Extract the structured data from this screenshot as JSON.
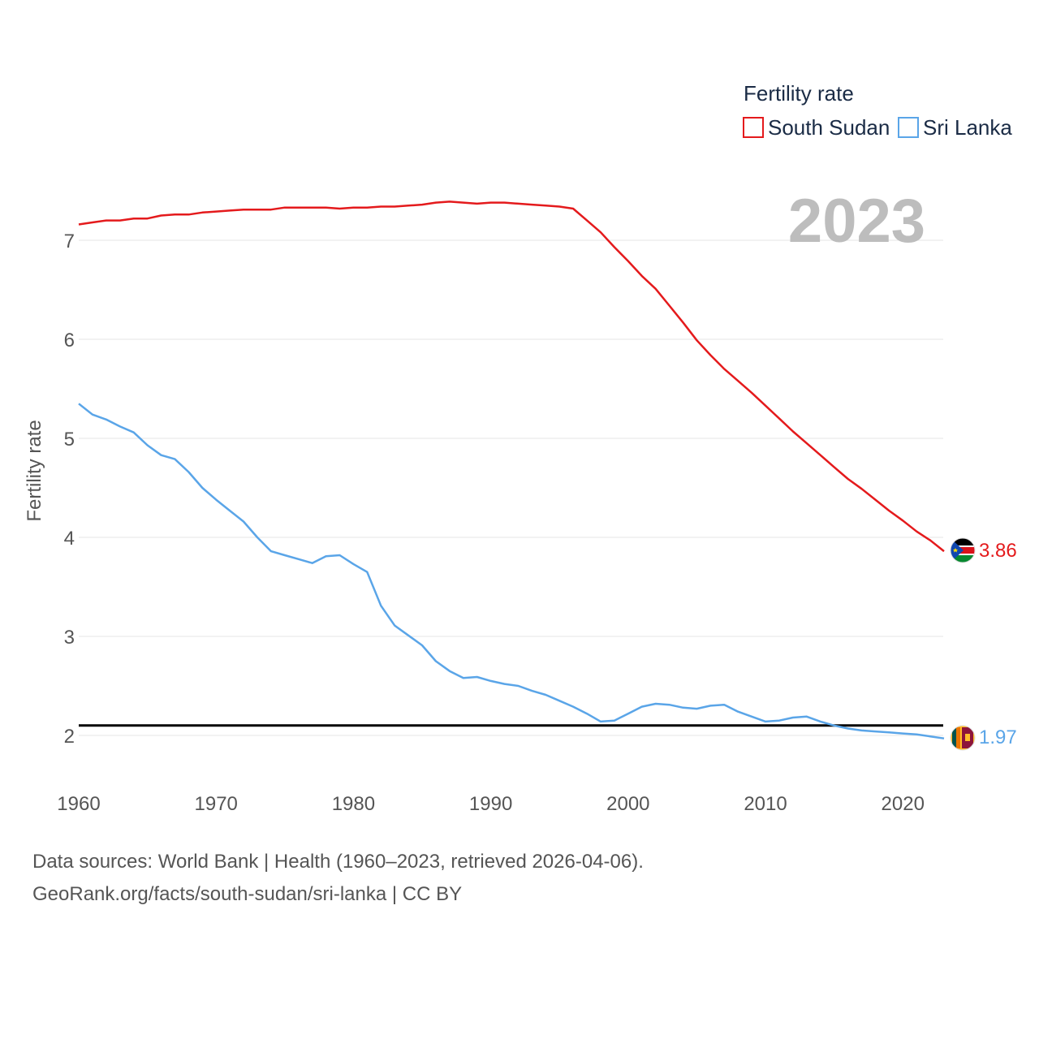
{
  "chart_data": {
    "type": "line",
    "title": "",
    "ylabel": "Fertility rate",
    "xlabel": "",
    "year_label": "2023",
    "xlim": [
      1960,
      2023
    ],
    "ylim": [
      1.5,
      7.5
    ],
    "x_ticks": [
      1960,
      1970,
      1980,
      1990,
      2000,
      2010,
      2020
    ],
    "y_ticks": [
      2,
      3,
      4,
      5,
      6,
      7
    ],
    "reference_line": {
      "y": 2.1,
      "color": "#000000"
    },
    "legend": {
      "title": "Fertility rate",
      "position": "top-right"
    },
    "x": [
      1960,
      1961,
      1962,
      1963,
      1964,
      1965,
      1966,
      1967,
      1968,
      1969,
      1970,
      1971,
      1972,
      1973,
      1974,
      1975,
      1976,
      1977,
      1978,
      1979,
      1980,
      1981,
      1982,
      1983,
      1984,
      1985,
      1986,
      1987,
      1988,
      1989,
      1990,
      1991,
      1992,
      1993,
      1994,
      1995,
      1996,
      1997,
      1998,
      1999,
      2000,
      2001,
      2002,
      2003,
      2004,
      2005,
      2006,
      2007,
      2008,
      2009,
      2010,
      2011,
      2012,
      2013,
      2014,
      2015,
      2016,
      2017,
      2018,
      2019,
      2020,
      2021,
      2022,
      2023
    ],
    "series": [
      {
        "name": "South Sudan",
        "color": "#e41a1c",
        "end_label": "3.86",
        "values": [
          7.16,
          7.18,
          7.2,
          7.2,
          7.22,
          7.22,
          7.25,
          7.26,
          7.26,
          7.28,
          7.29,
          7.3,
          7.31,
          7.31,
          7.31,
          7.33,
          7.33,
          7.33,
          7.33,
          7.32,
          7.33,
          7.33,
          7.34,
          7.34,
          7.35,
          7.36,
          7.38,
          7.39,
          7.38,
          7.37,
          7.38,
          7.38,
          7.37,
          7.36,
          7.35,
          7.34,
          7.32,
          7.2,
          7.08,
          6.93,
          6.79,
          6.64,
          6.51,
          6.34,
          6.17,
          5.99,
          5.84,
          5.7,
          5.58,
          5.46,
          5.33,
          5.2,
          5.07,
          4.95,
          4.83,
          4.71,
          4.59,
          4.49,
          4.38,
          4.27,
          4.17,
          4.06,
          3.97,
          3.86
        ]
      },
      {
        "name": "Sri Lanka",
        "color": "#5aa5e8",
        "end_label": "1.97",
        "values": [
          5.35,
          5.24,
          5.19,
          5.12,
          5.06,
          4.93,
          4.83,
          4.79,
          4.66,
          4.5,
          4.38,
          4.27,
          4.16,
          4.0,
          3.86,
          3.82,
          3.78,
          3.74,
          3.81,
          3.82,
          3.73,
          3.65,
          3.31,
          3.11,
          3.01,
          2.91,
          2.75,
          2.65,
          2.58,
          2.59,
          2.55,
          2.52,
          2.5,
          2.45,
          2.41,
          2.35,
          2.29,
          2.22,
          2.14,
          2.15,
          2.22,
          2.29,
          2.32,
          2.31,
          2.28,
          2.27,
          2.3,
          2.31,
          2.24,
          2.19,
          2.14,
          2.15,
          2.18,
          2.19,
          2.14,
          2.1,
          2.07,
          2.05,
          2.04,
          2.03,
          2.02,
          2.01,
          1.99,
          1.97
        ]
      }
    ]
  },
  "footer": {
    "line1": "Data sources: World Bank | Health (1960–2023, retrieved 2026-04-06).",
    "line2": "GeoRank.org/facts/south-sudan/sri-lanka | CC BY"
  }
}
